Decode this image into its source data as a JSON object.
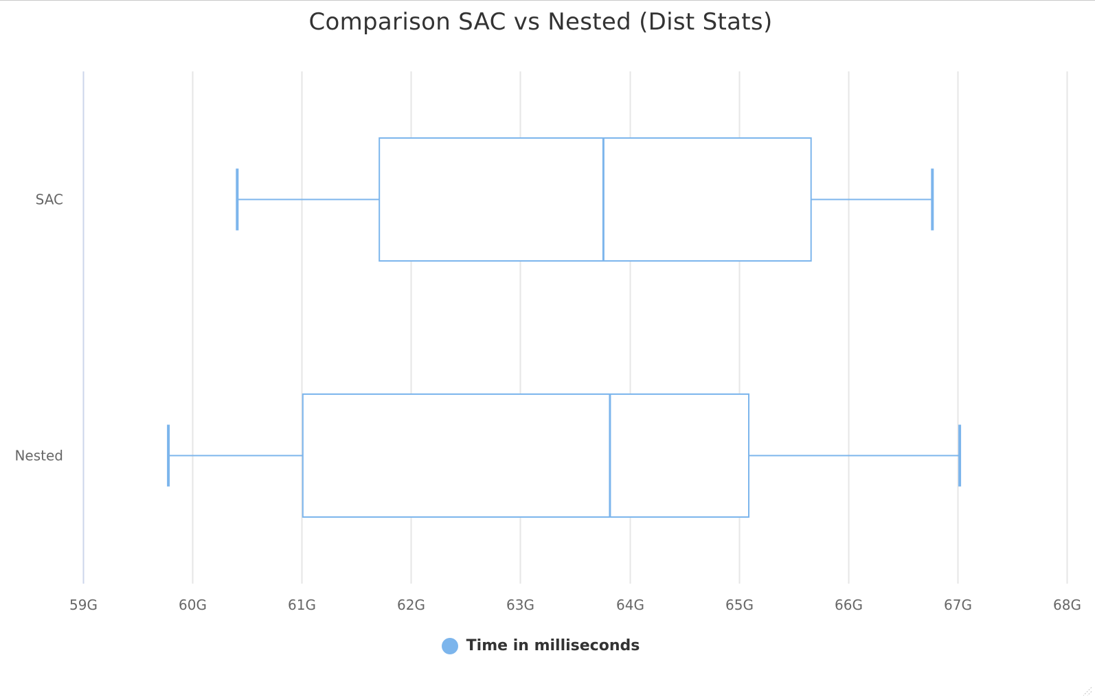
{
  "chart_data": {
    "type": "boxplot",
    "orientation": "horizontal",
    "title": "Comparison SAC vs Nested (Dist Stats)",
    "categories": [
      "SAC",
      "Nested"
    ],
    "series": [
      {
        "name": "Time in milliseconds",
        "boxes": [
          {
            "category": "SAC",
            "low": 60.41,
            "q1": 61.71,
            "median": 63.76,
            "q3": 65.66,
            "high": 66.77
          },
          {
            "category": "Nested",
            "low": 59.78,
            "q1": 61.01,
            "median": 63.82,
            "q3": 65.09,
            "high": 67.02
          }
        ]
      }
    ],
    "xaxis": {
      "min": 59,
      "max": 68,
      "tick_interval": 1,
      "tick_suffix": "G",
      "ticks": [
        "59G",
        "60G",
        "61G",
        "62G",
        "63G",
        "64G",
        "65G",
        "66G",
        "67G",
        "68G"
      ],
      "grid": true
    },
    "legend": {
      "placement": "bottom-center"
    },
    "color": "#7cb5ec"
  }
}
